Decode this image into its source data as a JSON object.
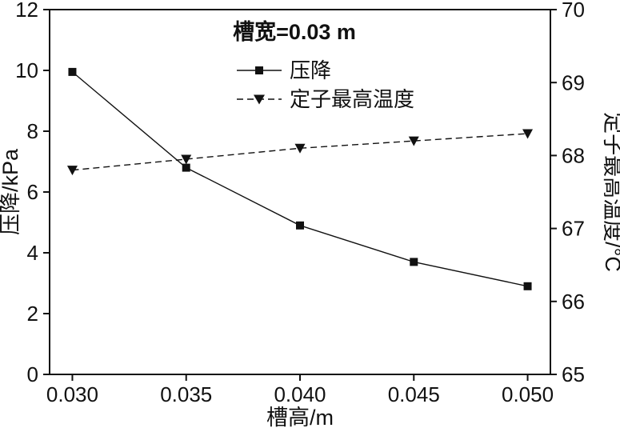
{
  "chart_data": {
    "type": "line",
    "title": "槽宽=0.03 m",
    "xlabel": "槽高/m",
    "ylabel_left": "压降/kPa",
    "ylabel_right": "定子最高温度/°C",
    "x": [
      0.03,
      0.035,
      0.04,
      0.045,
      0.05
    ],
    "x_tick_labels": [
      "0.030",
      "0.035",
      "0.040",
      "0.045",
      "0.050"
    ],
    "xlim": [
      0.029,
      0.051
    ],
    "ylim_left": [
      0,
      12
    ],
    "left_ticks": [
      0,
      2,
      4,
      6,
      8,
      10,
      12
    ],
    "ylim_right": [
      65,
      70
    ],
    "right_ticks": [
      65,
      66,
      67,
      68,
      69,
      70
    ],
    "series": [
      {
        "name": "压降",
        "axis": "left",
        "marker": "square",
        "line": "solid",
        "values": [
          9.95,
          6.8,
          4.9,
          3.7,
          2.9
        ]
      },
      {
        "name": "定子最高温度",
        "axis": "right",
        "marker": "triangle-down",
        "line": "dashed",
        "values": [
          67.8,
          67.95,
          68.1,
          68.2,
          68.3
        ]
      }
    ],
    "legend_position": "top-center",
    "grid": false,
    "colors": {
      "line": "#111111",
      "marker": "#111111",
      "text": "#111111",
      "background": "#ffffff"
    }
  }
}
